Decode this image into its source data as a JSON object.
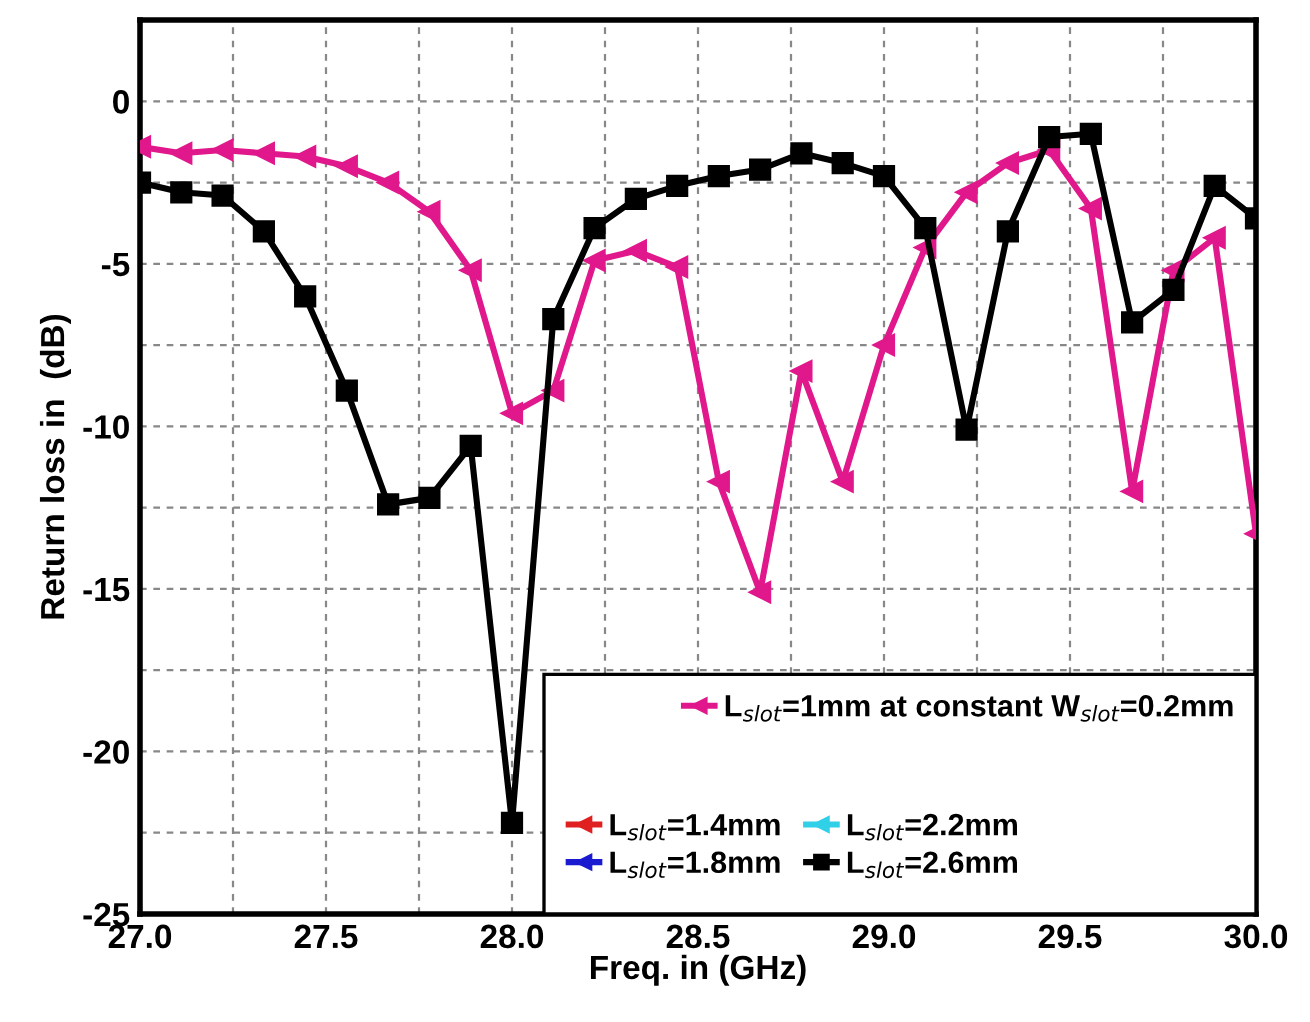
{
  "chart_data": {
    "type": "line",
    "xlabel": "Freq. in (GHz)",
    "ylabel": "Return loss in  (dB)",
    "x": [
      27.0,
      27.111,
      27.222,
      27.333,
      27.444,
      27.556,
      27.667,
      27.778,
      27.889,
      28.0,
      28.111,
      28.222,
      28.333,
      28.444,
      28.556,
      28.667,
      28.778,
      28.889,
      29.0,
      29.111,
      29.222,
      29.333,
      29.444,
      29.556,
      29.667,
      29.778,
      29.889,
      30.0
    ],
    "series": [
      {
        "name": "L$_{slot}$=1mm at constant W$_{slot}$=0.2mm",
        "color": "#e0188c",
        "marker": "triangle",
        "values": [
          -1.4,
          -1.6,
          -1.5,
          -1.6,
          -1.7,
          -2.0,
          -2.5,
          -3.4,
          -5.2,
          -9.6,
          -8.9,
          -4.9,
          -4.6,
          -5.1,
          -11.7,
          -15.1,
          -8.3,
          -11.7,
          -7.5,
          -4.5,
          -2.8,
          -1.9,
          -1.5,
          -3.3,
          -12.0,
          -5.2,
          -4.2,
          -13.3
        ]
      },
      {
        "name": "L$_{slot}$=1.4mm",
        "color": "#e02020",
        "marker": "triangle",
        "values": [
          null,
          null,
          null,
          null,
          null,
          null,
          null,
          null,
          null,
          null,
          null,
          null,
          null,
          null,
          null,
          null,
          null,
          null,
          null,
          null,
          null,
          null,
          null,
          null,
          null,
          null,
          null,
          null
        ]
      },
      {
        "name": "L$_{slot}$=1.8mm",
        "color": "#1a1ad0",
        "marker": "triangle",
        "values": [
          null,
          null,
          null,
          null,
          null,
          null,
          null,
          null,
          null,
          null,
          null,
          null,
          null,
          null,
          null,
          null,
          null,
          null,
          null,
          null,
          null,
          null,
          null,
          null,
          null,
          null,
          null,
          null
        ]
      },
      {
        "name": "L$_{slot}$=2.2mm",
        "color": "#30d0e8",
        "marker": "triangle",
        "values": [
          null,
          null,
          null,
          null,
          null,
          null,
          null,
          null,
          null,
          null,
          null,
          null,
          null,
          null,
          null,
          null,
          null,
          null,
          null,
          null,
          null,
          null,
          null,
          null,
          null,
          null,
          null,
          null
        ]
      },
      {
        "name": "L$_{slot}$=2.6mm",
        "color": "#000000",
        "marker": "square",
        "values": [
          -2.5,
          -2.8,
          -2.9,
          -4.0,
          -6.0,
          -8.9,
          -12.4,
          -12.2,
          -10.6,
          -22.2,
          -6.7,
          -3.9,
          -3.0,
          -2.6,
          -2.3,
          -2.1,
          -1.6,
          -1.9,
          -2.3,
          -3.9,
          -10.1,
          -4.0,
          -1.1,
          -1.0,
          -6.8,
          -5.8,
          -2.6,
          -3.6
        ]
      }
    ],
    "xlim": [
      27,
      30
    ],
    "xticks": [
      {
        "value": 27,
        "label": "27.0"
      },
      {
        "value": 27.25,
        "label": null
      },
      {
        "value": 27.5,
        "label": "27.5"
      },
      {
        "value": 27.75,
        "label": null
      },
      {
        "value": 28,
        "label": "28.0"
      },
      {
        "value": 28.25,
        "label": null
      },
      {
        "value": 28.5,
        "label": "28.5"
      },
      {
        "value": 28.75,
        "label": null
      },
      {
        "value": 29,
        "label": "29.0"
      },
      {
        "value": 29.25,
        "label": null
      },
      {
        "value": 29.5,
        "label": "29.5"
      },
      {
        "value": 29.75,
        "label": null
      },
      {
        "value": 30,
        "label": "30.0"
      }
    ],
    "ylim": [
      -25,
      2.5
    ],
    "yticks": [
      -25,
      {
        "value": -22.5,
        "label": null
      },
      -20,
      {
        "value": -17.5,
        "label": null
      },
      -15,
      {
        "value": -12.5,
        "label": null
      },
      -10,
      {
        "value": -7.5,
        "label": null
      },
      -5,
      {
        "value": -2.5,
        "label": null
      },
      0
    ],
    "grid": true,
    "legend": "bottom right",
    "line_style": "solid"
  }
}
